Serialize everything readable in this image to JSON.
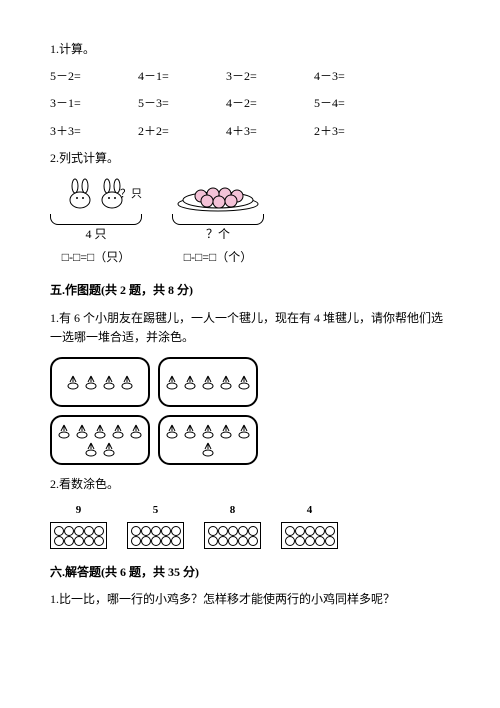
{
  "q1": {
    "title": "1.计算。",
    "rows": [
      [
        "5－2=",
        "4－1=",
        "3－2=",
        "4－3="
      ],
      [
        "3－1=",
        "5－3=",
        "4－2=",
        "5－4="
      ],
      [
        "3＋3=",
        "2＋2=",
        "4＋3=",
        "2＋3="
      ]
    ]
  },
  "q2": {
    "title": "2.列式计算。",
    "fig1": {
      "qmark": "？只",
      "count": "4 只",
      "expr": "□-□=□（只）"
    },
    "fig2": {
      "count": "？个",
      "expr": "□-□=□（个）"
    }
  },
  "section5": {
    "title": "五.作图题(共 2 题，共 8 分)",
    "q1": "1.有 6 个小朋友在踢毽儿，一人一个毽儿，现在有 4 堆毽儿，请你帮他们选一选哪一堆合适，并涂色。",
    "piles": [
      4,
      5,
      7,
      6
    ],
    "q2": "2.看数涂色。",
    "colornums": [
      "9",
      "5",
      "8",
      "4"
    ]
  },
  "section6": {
    "title": "六.解答题(共 6 题，共 35 分)",
    "q1": "1.比一比，哪一行的小鸡多？怎样移才能使两行的小鸡同样多呢？"
  }
}
